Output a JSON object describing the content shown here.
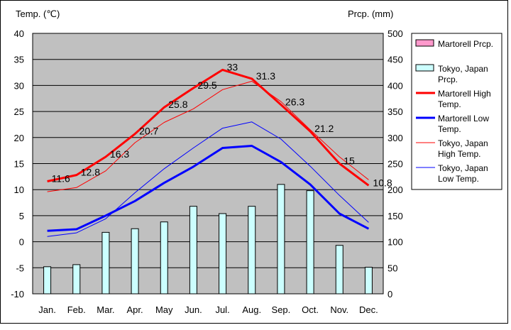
{
  "chart_data": {
    "type": "bar+line",
    "title": "",
    "left_axis": {
      "label": "Temp. (℃)",
      "min": -10,
      "max": 40,
      "step": 5
    },
    "right_axis": {
      "label": "Prcp. (mm)",
      "min": 0,
      "max": 500,
      "step": 50
    },
    "categories": [
      "Jan.",
      "Feb.",
      "Mar.",
      "Apr.",
      "May",
      "Jun.",
      "Jul.",
      "Aug.",
      "Sep.",
      "Oct.",
      "Nov.",
      "Dec."
    ],
    "grid": true,
    "legend_position": "right",
    "series": [
      {
        "name": "Martorell Prcp.",
        "type": "bar",
        "axis": "right",
        "color": "#ff99cc",
        "values": [
          0,
          0,
          0,
          0,
          0,
          0,
          0,
          0,
          0,
          0,
          0,
          0
        ]
      },
      {
        "name": "Tokyo, Japan Prcp.",
        "type": "bar",
        "axis": "right",
        "color": "#ccffff",
        "values": [
          52,
          56,
          118,
          125,
          138,
          168,
          154,
          168,
          210,
          198,
          93,
          51
        ]
      },
      {
        "name": "Martorell High Temp.",
        "type": "line",
        "axis": "left",
        "color": "#ff0000",
        "width": 3,
        "values": [
          11.6,
          12.8,
          16.3,
          20.7,
          25.8,
          29.5,
          33,
          31.3,
          26.3,
          21.2,
          15,
          10.8
        ]
      },
      {
        "name": "Martorell Low Temp.",
        "type": "line",
        "axis": "left",
        "color": "#0000ff",
        "width": 3,
        "values": [
          2.1,
          2.4,
          5.0,
          7.8,
          11.3,
          14.4,
          18.0,
          18.4,
          15.3,
          11.0,
          5.4,
          2.5
        ]
      },
      {
        "name": "Tokyo, Japan High Temp.",
        "type": "line",
        "axis": "left",
        "color": "#ff0000",
        "width": 1,
        "values": [
          9.6,
          10.4,
          13.6,
          19.0,
          22.9,
          25.5,
          29.2,
          30.8,
          26.9,
          21.5,
          16.3,
          11.9
        ]
      },
      {
        "name": "Tokyo, Japan Low Temp.",
        "type": "line",
        "axis": "left",
        "color": "#0000ff",
        "width": 1,
        "values": [
          1.0,
          1.7,
          4.4,
          9.4,
          14.0,
          18.0,
          21.8,
          23.0,
          19.7,
          14.5,
          8.9,
          3.7
        ]
      }
    ],
    "data_labels": {
      "series": "Martorell High Temp.",
      "values": [
        "11.6",
        "12.8",
        "16.3",
        "20.7",
        "25.8",
        "29.5",
        "33",
        "31.3",
        "26.3",
        "21.2",
        "15",
        "10.8"
      ]
    }
  }
}
